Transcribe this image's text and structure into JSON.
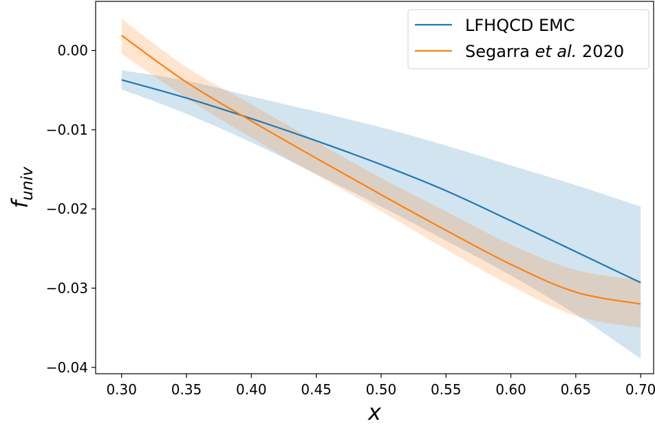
{
  "chart_data": {
    "type": "line",
    "xlabel": "x",
    "ylabel_main": "f",
    "ylabel_sub": "univ",
    "xlim": [
      0.28,
      0.71
    ],
    "ylim": [
      -0.0408,
      0.0062
    ],
    "x_ticks": [
      0.3,
      0.35,
      0.4,
      0.45,
      0.5,
      0.55,
      0.6,
      0.65,
      0.7
    ],
    "x_tick_labels": [
      "0.30",
      "0.35",
      "0.40",
      "0.45",
      "0.50",
      "0.55",
      "0.60",
      "0.65",
      "0.70"
    ],
    "y_ticks": [
      0.0,
      -0.01,
      -0.02,
      -0.03,
      -0.04
    ],
    "y_tick_labels": [
      "0.00",
      "−0.01",
      "−0.02",
      "−0.03",
      "−0.04"
    ],
    "grid": false,
    "legend_position": "top-right",
    "series": [
      {
        "name": "LFHQCD EMC",
        "color": "#1f77b4",
        "band_color": "#1f77b4",
        "x": [
          0.3,
          0.35,
          0.4,
          0.45,
          0.5,
          0.55,
          0.6,
          0.65,
          0.7
        ],
        "y": [
          -0.0037,
          -0.006,
          -0.0086,
          -0.0114,
          -0.0144,
          -0.0177,
          -0.0215,
          -0.0254,
          -0.0293
        ],
        "lower": [
          -0.0049,
          -0.008,
          -0.0116,
          -0.0156,
          -0.0197,
          -0.024,
          -0.0284,
          -0.0333,
          -0.0389
        ],
        "upper": [
          -0.0025,
          -0.0038,
          -0.0058,
          -0.0077,
          -0.0097,
          -0.012,
          -0.0145,
          -0.017,
          -0.0197
        ]
      },
      {
        "name": "Segarra et al. 2020",
        "legend_prefix": "Segarra ",
        "legend_italic": "et al.",
        "legend_suffix": " 2020",
        "color": "#ff7f0e",
        "band_color": "#ff7f0e",
        "x": [
          0.3,
          0.35,
          0.4,
          0.45,
          0.5,
          0.55,
          0.6,
          0.65,
          0.7
        ],
        "y": [
          0.0019,
          -0.004,
          -0.0089,
          -0.0136,
          -0.0182,
          -0.0227,
          -0.027,
          -0.0305,
          -0.032
        ],
        "lower": [
          -0.0004,
          -0.006,
          -0.011,
          -0.0157,
          -0.0203,
          -0.0251,
          -0.0297,
          -0.0335,
          -0.035
        ],
        "upper": [
          0.004,
          -0.0021,
          -0.0068,
          -0.0115,
          -0.0161,
          -0.0203,
          -0.0245,
          -0.0277,
          -0.029
        ]
      }
    ]
  }
}
